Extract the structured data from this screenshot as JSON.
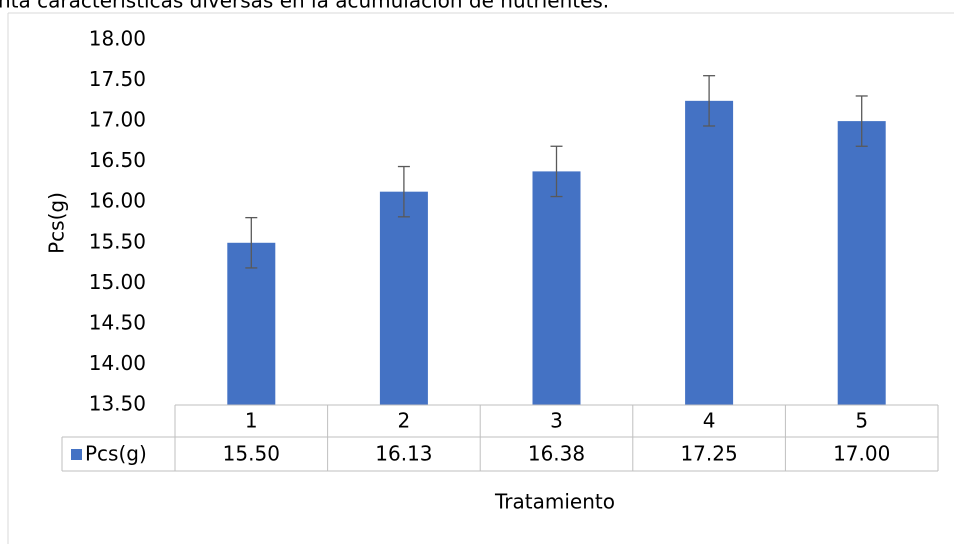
{
  "caption": "nta características diversas en la acumulación de nutrientes.",
  "chart_data": {
    "type": "bar",
    "x_label": "Tratamiento",
    "y_label": "Pcs(g)",
    "categories": [
      "1",
      "2",
      "3",
      "4",
      "5"
    ],
    "series": [
      {
        "name": "Pcs(g)",
        "color": "#4472c4",
        "values": [
          15.5,
          16.13,
          16.38,
          17.25,
          17.0
        ],
        "value_labels": [
          "15.50",
          "16.13",
          "16.38",
          "17.25",
          "17.00"
        ],
        "errors": [
          0.31,
          0.31,
          0.31,
          0.31,
          0.31
        ]
      }
    ],
    "ylim": [
      13.5,
      18.0
    ],
    "yticks": [
      {
        "value": 13.5,
        "label": "13.50"
      },
      {
        "value": 14.0,
        "label": "14.00"
      },
      {
        "value": 14.5,
        "label": "14.50"
      },
      {
        "value": 15.0,
        "label": "15.00"
      },
      {
        "value": 15.5,
        "label": "15.50"
      },
      {
        "value": 16.0,
        "label": "16.00"
      },
      {
        "value": 16.5,
        "label": "16.50"
      },
      {
        "value": 17.0,
        "label": "17.00"
      },
      {
        "value": 17.5,
        "label": "17.50"
      },
      {
        "value": 18.0,
        "label": "18.00"
      }
    ],
    "grid": false,
    "data_table": true
  }
}
